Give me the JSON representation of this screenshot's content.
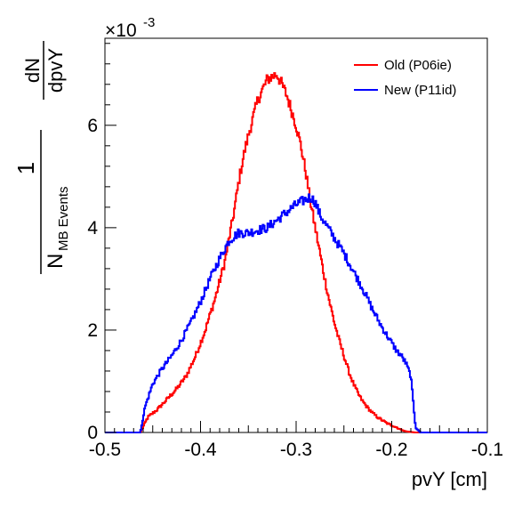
{
  "chart_data": {
    "type": "line",
    "style": "step-histogram",
    "xlabel": "pvY [cm]",
    "ylabel": {
      "numerator": "1",
      "denominator_main": "N",
      "denominator_sub": "MB Events",
      "fraction_num": "dN",
      "fraction_den": "dpvY"
    },
    "y_scale_label": {
      "base": "×10",
      "exponent": "-3"
    },
    "xlim": [
      -0.5,
      -0.1
    ],
    "ylim": [
      0,
      7.7
    ],
    "x_ticks": [
      "-0.5",
      "-0.4",
      "-0.3",
      "-0.2",
      "-0.1"
    ],
    "x_tick_values": [
      -0.5,
      -0.4,
      -0.3,
      -0.2,
      -0.1
    ],
    "y_ticks": [
      "0",
      "2",
      "4",
      "6"
    ],
    "y_tick_values": [
      0,
      2,
      4,
      6
    ],
    "legend_position": "top-right",
    "grid": false,
    "series": [
      {
        "name": "Old (P06ie)",
        "color": "#ff0000",
        "x": [
          -0.5,
          -0.47,
          -0.463,
          -0.455,
          -0.445,
          -0.435,
          -0.425,
          -0.415,
          -0.405,
          -0.395,
          -0.385,
          -0.375,
          -0.37,
          -0.365,
          -0.36,
          -0.355,
          -0.35,
          -0.345,
          -0.34,
          -0.335,
          -0.33,
          -0.325,
          -0.32,
          -0.315,
          -0.31,
          -0.305,
          -0.3,
          -0.295,
          -0.29,
          -0.285,
          -0.28,
          -0.275,
          -0.27,
          -0.265,
          -0.26,
          -0.255,
          -0.25,
          -0.245,
          -0.24,
          -0.235,
          -0.23,
          -0.225,
          -0.22,
          -0.215,
          -0.21,
          -0.205,
          -0.2,
          -0.195,
          -0.19,
          -0.185,
          -0.18,
          -0.175,
          -0.17,
          -0.16,
          -0.1
        ],
        "y": [
          0,
          0,
          0,
          0.3,
          0.45,
          0.65,
          0.85,
          1.1,
          1.5,
          2.0,
          2.6,
          3.3,
          3.8,
          4.3,
          4.9,
          5.4,
          5.8,
          6.15,
          6.5,
          6.7,
          6.9,
          6.95,
          7.0,
          6.8,
          6.6,
          6.3,
          6.0,
          5.6,
          5.1,
          4.5,
          4.0,
          3.5,
          3.0,
          2.55,
          2.15,
          1.8,
          1.5,
          1.2,
          0.95,
          0.75,
          0.6,
          0.48,
          0.38,
          0.3,
          0.24,
          0.18,
          0.14,
          0.1,
          0.05,
          0.02,
          0.01,
          0,
          0,
          0,
          0
        ]
      },
      {
        "name": "New (P11id)",
        "color": "#0000ff",
        "x": [
          -0.5,
          -0.47,
          -0.463,
          -0.458,
          -0.45,
          -0.44,
          -0.43,
          -0.42,
          -0.41,
          -0.4,
          -0.39,
          -0.38,
          -0.37,
          -0.36,
          -0.35,
          -0.34,
          -0.33,
          -0.32,
          -0.31,
          -0.3,
          -0.29,
          -0.285,
          -0.28,
          -0.275,
          -0.27,
          -0.26,
          -0.25,
          -0.24,
          -0.23,
          -0.22,
          -0.21,
          -0.2,
          -0.195,
          -0.19,
          -0.185,
          -0.18,
          -0.177,
          -0.175,
          -0.17,
          -0.1
        ],
        "y": [
          0,
          0,
          0,
          0.5,
          0.95,
          1.25,
          1.5,
          1.8,
          2.15,
          2.55,
          3.0,
          3.4,
          3.75,
          3.9,
          3.9,
          3.95,
          4.0,
          4.15,
          4.3,
          4.45,
          4.55,
          4.6,
          4.5,
          4.25,
          4.1,
          3.8,
          3.5,
          3.15,
          2.8,
          2.4,
          2.05,
          1.75,
          1.6,
          1.5,
          1.35,
          1.1,
          0.5,
          0.1,
          0,
          0
        ]
      }
    ]
  }
}
